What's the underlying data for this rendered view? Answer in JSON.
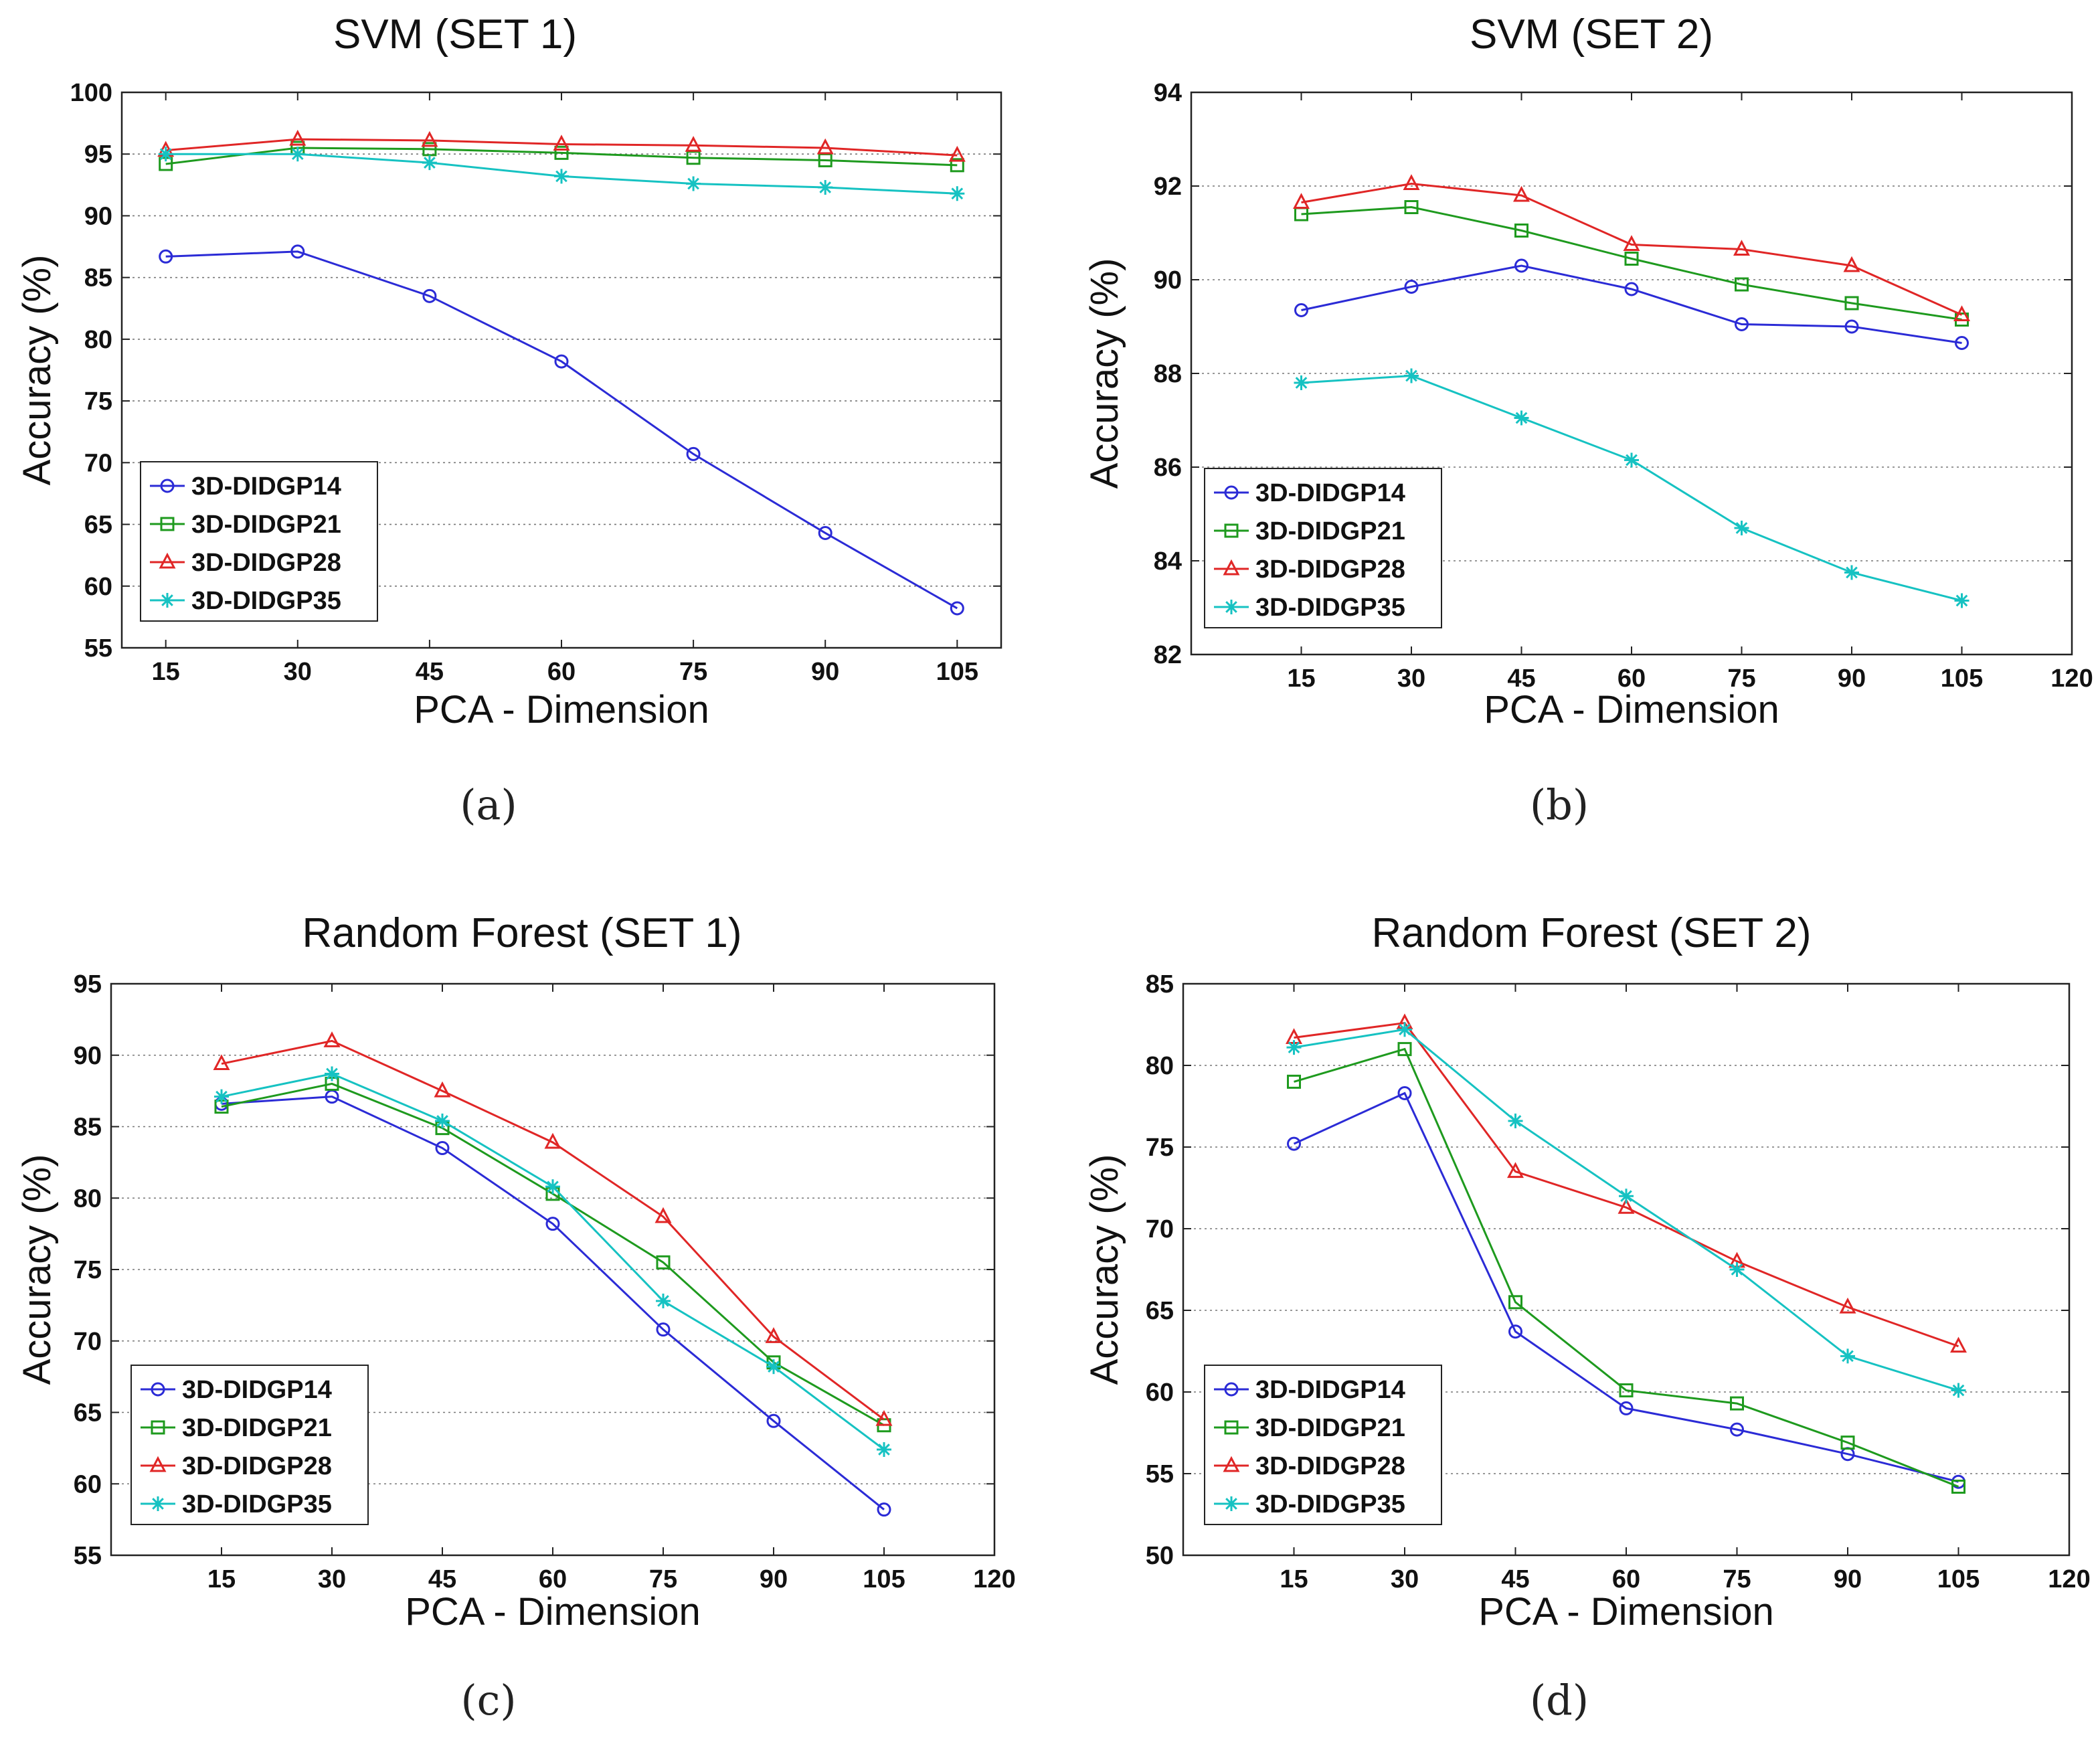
{
  "chart_data": [
    {
      "type": "line",
      "title": "SVM (SET 1)",
      "xlabel": "PCA - Dimension",
      "ylabel": "Accuracy (%)",
      "caption": "(a)",
      "x": [
        15,
        30,
        45,
        60,
        75,
        90,
        105
      ],
      "xlim": [
        10,
        110
      ],
      "xticks": [
        15,
        30,
        45,
        60,
        75,
        90,
        105
      ],
      "ylim": [
        55,
        100
      ],
      "yticks": [
        55,
        60,
        65,
        70,
        75,
        80,
        85,
        90,
        95,
        100
      ],
      "grid": true,
      "legend_position": "bottom-left",
      "series": [
        {
          "name": "3D-DIDGP14",
          "color": "#2b2bd6",
          "marker": "circle",
          "values": [
            86.7,
            87.1,
            83.5,
            78.2,
            70.7,
            64.3,
            58.2
          ]
        },
        {
          "name": "3D-DIDGP21",
          "color": "#1e9a1e",
          "marker": "square",
          "values": [
            94.2,
            95.5,
            95.4,
            95.1,
            94.7,
            94.5,
            94.1
          ]
        },
        {
          "name": "3D-DIDGP28",
          "color": "#e02626",
          "marker": "triangle",
          "values": [
            95.3,
            96.2,
            96.1,
            95.8,
            95.7,
            95.5,
            94.9
          ]
        },
        {
          "name": "3D-DIDGP35",
          "color": "#16c2c2",
          "marker": "star",
          "values": [
            95.0,
            95.0,
            94.3,
            93.2,
            92.6,
            92.3,
            91.8
          ]
        }
      ]
    },
    {
      "type": "line",
      "title": "SVM (SET 2)",
      "xlabel": "PCA - Dimension",
      "ylabel": "Accuracy (%)",
      "caption": "(b)",
      "x": [
        15,
        30,
        45,
        60,
        75,
        90,
        105
      ],
      "xlim": [
        0,
        120
      ],
      "xticks": [
        15,
        30,
        45,
        60,
        75,
        90,
        105,
        120
      ],
      "ylim": [
        82,
        94
      ],
      "yticks": [
        82,
        84,
        86,
        88,
        90,
        92,
        94
      ],
      "grid": true,
      "legend_position": "bottom-left",
      "series": [
        {
          "name": "3D-DIDGP14",
          "color": "#2b2bd6",
          "marker": "circle",
          "values": [
            89.35,
            89.85,
            90.3,
            89.8,
            89.05,
            89.0,
            88.65
          ]
        },
        {
          "name": "3D-DIDGP21",
          "color": "#1e9a1e",
          "marker": "square",
          "values": [
            91.4,
            91.55,
            91.05,
            90.45,
            89.9,
            89.5,
            89.15
          ]
        },
        {
          "name": "3D-DIDGP28",
          "color": "#e02626",
          "marker": "triangle",
          "values": [
            91.65,
            92.05,
            91.8,
            90.75,
            90.65,
            90.3,
            89.25
          ]
        },
        {
          "name": "3D-DIDGP35",
          "color": "#16c2c2",
          "marker": "star",
          "values": [
            87.8,
            87.95,
            87.05,
            86.15,
            84.7,
            83.75,
            83.15
          ]
        }
      ]
    },
    {
      "type": "line",
      "title": "Random Forest (SET 1)",
      "xlabel": "PCA - Dimension",
      "ylabel": "Accuracy (%)",
      "caption": "(c)",
      "x": [
        15,
        30,
        45,
        60,
        75,
        90,
        105
      ],
      "xlim": [
        0,
        120
      ],
      "xticks": [
        15,
        30,
        45,
        60,
        75,
        90,
        105,
        120
      ],
      "ylim": [
        55,
        95
      ],
      "yticks": [
        55,
        60,
        65,
        70,
        75,
        80,
        85,
        90,
        95
      ],
      "grid": true,
      "legend_position": "bottom-left",
      "series": [
        {
          "name": "3D-DIDGP14",
          "color": "#2b2bd6",
          "marker": "circle",
          "values": [
            86.6,
            87.1,
            83.5,
            78.2,
            70.8,
            64.4,
            58.2
          ]
        },
        {
          "name": "3D-DIDGP21",
          "color": "#1e9a1e",
          "marker": "square",
          "values": [
            86.4,
            88.0,
            84.9,
            80.3,
            75.5,
            68.5,
            64.1
          ]
        },
        {
          "name": "3D-DIDGP28",
          "color": "#e02626",
          "marker": "triangle",
          "values": [
            89.4,
            91.0,
            87.5,
            83.9,
            78.7,
            70.3,
            64.5
          ]
        },
        {
          "name": "3D-DIDGP35",
          "color": "#16c2c2",
          "marker": "star",
          "values": [
            87.1,
            88.7,
            85.4,
            80.8,
            72.8,
            68.2,
            62.4
          ]
        }
      ]
    },
    {
      "type": "line",
      "title": "Random Forest (SET 2)",
      "xlabel": "PCA - Dimension",
      "ylabel": "Accuracy (%)",
      "caption": "(d)",
      "x": [
        15,
        30,
        45,
        60,
        75,
        90,
        105
      ],
      "xlim": [
        0,
        120
      ],
      "xticks": [
        15,
        30,
        45,
        60,
        75,
        90,
        105,
        120
      ],
      "ylim": [
        50,
        85
      ],
      "yticks": [
        50,
        55,
        60,
        65,
        70,
        75,
        80,
        85
      ],
      "grid": true,
      "legend_position": "bottom-left",
      "series": [
        {
          "name": "3D-DIDGP14",
          "color": "#2b2bd6",
          "marker": "circle",
          "values": [
            75.2,
            78.3,
            63.7,
            59.0,
            57.7,
            56.2,
            54.5
          ]
        },
        {
          "name": "3D-DIDGP21",
          "color": "#1e9a1e",
          "marker": "square",
          "values": [
            79.0,
            81.0,
            65.5,
            60.1,
            59.3,
            56.9,
            54.2
          ]
        },
        {
          "name": "3D-DIDGP28",
          "color": "#e02626",
          "marker": "triangle",
          "values": [
            81.7,
            82.6,
            73.5,
            71.3,
            68.0,
            65.2,
            62.8
          ]
        },
        {
          "name": "3D-DIDGP35",
          "color": "#16c2c2",
          "marker": "star",
          "values": [
            81.1,
            82.2,
            76.6,
            72.0,
            67.5,
            62.2,
            60.1
          ]
        }
      ]
    }
  ]
}
